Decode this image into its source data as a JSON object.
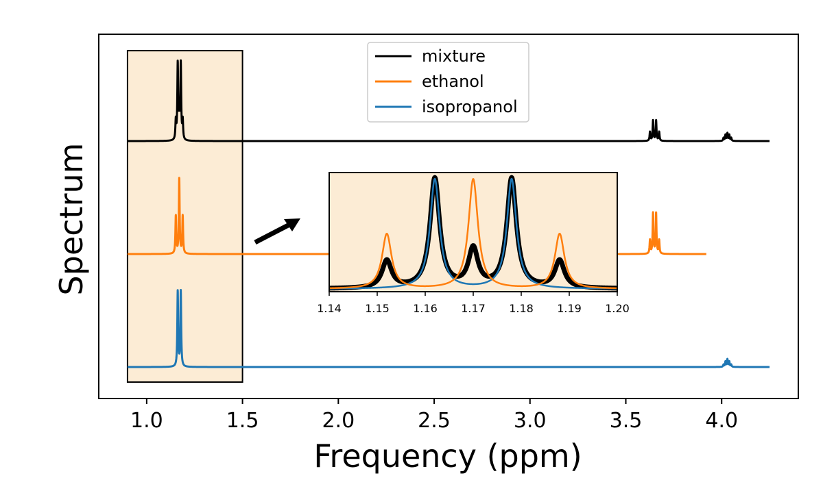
{
  "chart_data": {
    "type": "line",
    "title": "",
    "xlabel": "Frequency (ppm)",
    "ylabel": "Spectrum",
    "xlim": [
      0.75,
      4.4
    ],
    "xticks": [
      1.0,
      1.5,
      2.0,
      2.5,
      3.0,
      3.5,
      4.0
    ],
    "xtick_labels": [
      "1.0",
      "1.5",
      "2.0",
      "2.5",
      "3.0",
      "3.5",
      "4.0"
    ],
    "yticks_shown": false,
    "grid": false,
    "legend_position": "top-center",
    "series": [
      {
        "name": "mixture",
        "color": "#000000",
        "x_range": [
          0.9,
          4.25
        ],
        "peaks": [
          {
            "center": 1.152,
            "height": 0.25
          },
          {
            "center": 1.162,
            "height": 1.0
          },
          {
            "center": 1.17,
            "height": 0.35
          },
          {
            "center": 1.178,
            "height": 1.0
          },
          {
            "center": 1.188,
            "height": 0.25
          },
          {
            "center": 3.626,
            "height": 0.12
          },
          {
            "center": 3.642,
            "height": 0.27
          },
          {
            "center": 3.658,
            "height": 0.27
          },
          {
            "center": 3.674,
            "height": 0.12
          },
          {
            "center": 4.01,
            "height": 0.04
          },
          {
            "center": 4.02,
            "height": 0.08
          },
          {
            "center": 4.03,
            "height": 0.1
          },
          {
            "center": 4.04,
            "height": 0.08
          },
          {
            "center": 4.05,
            "height": 0.04
          }
        ]
      },
      {
        "name": "ethanol",
        "color": "#ff7f0e",
        "x_range": [
          0.9,
          3.92
        ],
        "peaks": [
          {
            "center": 1.152,
            "height": 0.5
          },
          {
            "center": 1.17,
            "height": 1.0
          },
          {
            "center": 1.188,
            "height": 0.5
          },
          {
            "center": 3.626,
            "height": 0.18
          },
          {
            "center": 3.642,
            "height": 0.54
          },
          {
            "center": 3.658,
            "height": 0.54
          },
          {
            "center": 3.674,
            "height": 0.18
          }
        ]
      },
      {
        "name": "isopropanol",
        "color": "#1f77b4",
        "x_range": [
          0.9,
          4.25
        ],
        "peaks": [
          {
            "center": 1.162,
            "height": 1.0
          },
          {
            "center": 1.178,
            "height": 1.0
          },
          {
            "center": 4.01,
            "height": 0.03
          },
          {
            "center": 4.02,
            "height": 0.07
          },
          {
            "center": 4.03,
            "height": 0.1
          },
          {
            "center": 4.04,
            "height": 0.07
          },
          {
            "center": 4.05,
            "height": 0.03
          }
        ]
      }
    ],
    "highlight_region": {
      "x": [
        0.9,
        1.5
      ],
      "color": "#fcecd5"
    },
    "inset": {
      "xlim": [
        1.14,
        1.2
      ],
      "xticks": [
        1.14,
        1.15,
        1.16,
        1.17,
        1.18,
        1.19,
        1.2
      ],
      "xtick_labels": [
        "1.14",
        "1.15",
        "1.16",
        "1.17",
        "1.18",
        "1.19",
        "1.20"
      ],
      "background": "#fcecd5"
    }
  }
}
